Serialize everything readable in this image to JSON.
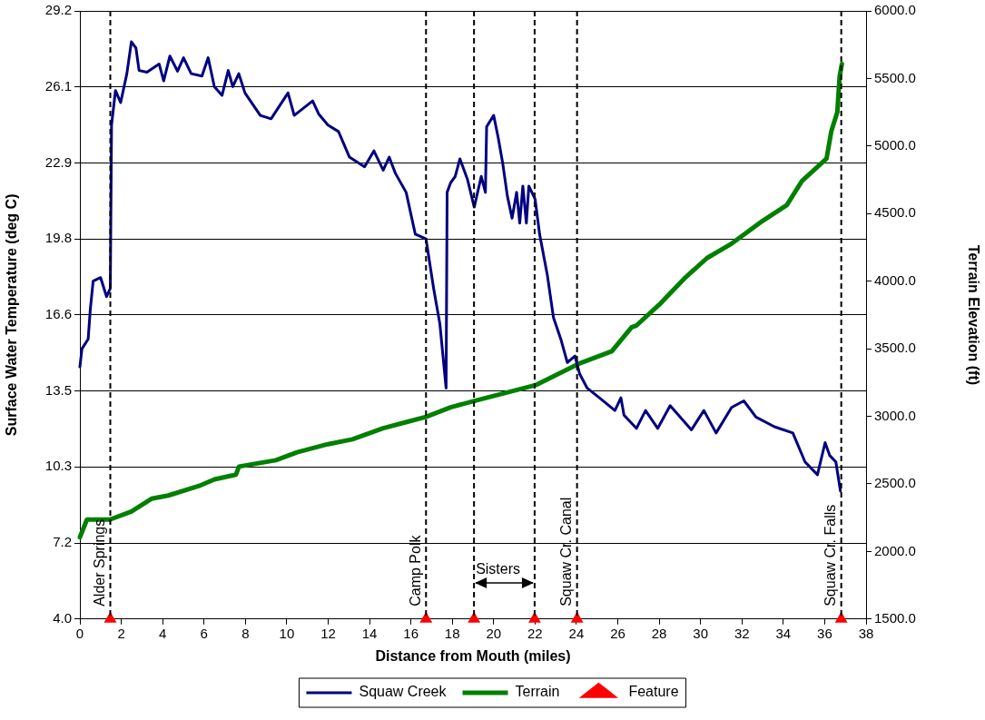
{
  "chart_data": {
    "type": "line",
    "xlabel": "Distance from Mouth (miles)",
    "ylabel": "Surface Water Temperature (deg C)",
    "y2label": "Terrain Elevation (ft)",
    "xlim": [
      0,
      38
    ],
    "xticks": [
      0,
      2,
      4,
      6,
      8,
      10,
      12,
      14,
      16,
      18,
      20,
      22,
      24,
      26,
      28,
      30,
      32,
      34,
      36,
      38
    ],
    "ylim": [
      4.0,
      29.2
    ],
    "yticks": [
      {
        "value": 4.0,
        "label": "4.0"
      },
      {
        "value": 7.15,
        "label": "7.2"
      },
      {
        "value": 10.3,
        "label": "10.3"
      },
      {
        "value": 13.45,
        "label": "13.5"
      },
      {
        "value": 16.6,
        "label": "16.6"
      },
      {
        "value": 19.75,
        "label": "19.8"
      },
      {
        "value": 22.9,
        "label": "22.9"
      },
      {
        "value": 26.05,
        "label": "26.1"
      },
      {
        "value": 29.2,
        "label": "29.2"
      }
    ],
    "y2lim": [
      1500,
      6000
    ],
    "y2ticks": [
      {
        "value": 1500,
        "label": "1500.0"
      },
      {
        "value": 2000,
        "label": "2000.0"
      },
      {
        "value": 2500,
        "label": "2500.0"
      },
      {
        "value": 3000,
        "label": "3000.0"
      },
      {
        "value": 3500,
        "label": "3500.0"
      },
      {
        "value": 4000,
        "label": "4000.0"
      },
      {
        "value": 4500,
        "label": "4500.0"
      },
      {
        "value": 5000,
        "label": "5000.0"
      },
      {
        "value": 5500,
        "label": "5500.0"
      },
      {
        "value": 6000,
        "label": "6000.0"
      }
    ],
    "grid": "y",
    "legend": "bottom",
    "series": [
      {
        "name": "Squaw Creek",
        "color": "#000080",
        "marker": "none",
        "x": [
          0,
          0.1,
          0.4,
          0.5,
          0.64,
          1.0,
          1.29,
          1.47,
          1.53,
          1.72,
          1.97,
          2.27,
          2.49,
          2.71,
          2.86,
          3.24,
          3.83,
          4.05,
          4.35,
          4.72,
          5.01,
          5.38,
          5.9,
          6.2,
          6.5,
          6.87,
          7.17,
          7.39,
          7.68,
          7.98,
          8.72,
          9.24,
          10.06,
          10.36,
          11.25,
          11.54,
          11.99,
          12.5,
          13.03,
          13.76,
          14.21,
          14.66,
          14.95,
          15.25,
          15.77,
          16.21,
          16.73,
          17.1,
          17.4,
          17.7,
          17.75,
          17.92,
          18.14,
          18.37,
          18.74,
          19.06,
          19.4,
          19.6,
          19.66,
          20.0,
          20.22,
          20.44,
          20.66,
          20.89,
          21.11,
          21.26,
          21.41,
          21.58,
          21.7,
          22.0,
          22.22,
          22.6,
          22.89,
          23.26,
          23.56,
          23.93,
          24.15,
          24.52,
          25.11,
          25.86,
          26.15,
          26.3,
          26.9,
          27.34,
          27.93,
          28.53,
          29.56,
          30.16,
          30.75,
          31.5,
          32.09,
          32.68,
          33.57,
          34.46,
          35.05,
          35.65,
          36.02,
          36.24,
          36.54,
          36.76
        ],
        "values": [
          14.45,
          15.2,
          15.6,
          16.8,
          18.0,
          18.15,
          17.36,
          17.7,
          24.47,
          25.9,
          25.4,
          26.6,
          27.92,
          27.66,
          26.73,
          26.66,
          27.0,
          26.3,
          27.33,
          26.7,
          27.26,
          26.6,
          26.5,
          27.26,
          26.06,
          25.7,
          26.73,
          26.06,
          26.6,
          25.8,
          24.87,
          24.73,
          25.8,
          24.87,
          25.47,
          24.93,
          24.47,
          24.2,
          23.14,
          22.74,
          23.4,
          22.6,
          23.14,
          22.47,
          21.68,
          19.95,
          19.75,
          17.69,
          16.23,
          13.57,
          21.68,
          22.08,
          22.34,
          23.07,
          22.2,
          21.07,
          22.34,
          21.68,
          24.4,
          24.87,
          23.94,
          22.87,
          21.54,
          20.61,
          21.68,
          20.41,
          21.94,
          20.41,
          21.94,
          21.41,
          19.95,
          18.22,
          16.49,
          15.56,
          14.63,
          14.9,
          14.17,
          13.57,
          13.17,
          12.64,
          13.17,
          12.45,
          11.9,
          12.64,
          11.9,
          12.84,
          11.84,
          12.64,
          11.71,
          12.77,
          13.04,
          12.37,
          11.97,
          11.71,
          10.51,
          9.98,
          11.31,
          10.78,
          10.51,
          9.31
        ]
      },
      {
        "name": "Terrain",
        "axis": "y2",
        "color": "#008000",
        "marker": "none",
        "x": [
          0,
          0.34,
          1.45,
          2.49,
          3.46,
          4.27,
          5.76,
          6.5,
          7.54,
          7.69,
          9.47,
          10.5,
          11.99,
          13.17,
          14.66,
          15.84,
          16.73,
          17.92,
          19.1,
          20.59,
          22.07,
          24.08,
          25.71,
          26.67,
          26.9,
          28.08,
          29.27,
          30.31,
          31.5,
          32.98,
          34.17,
          34.9,
          36.09,
          36.32,
          36.61,
          36.72,
          36.83
        ],
        "values": [
          2105,
          2236,
          2236,
          2296,
          2390,
          2414,
          2485,
          2533,
          2568,
          2628,
          2675,
          2734,
          2794,
          2830,
          2912,
          2960,
          2996,
          3067,
          3115,
          3174,
          3233,
          3387,
          3482,
          3660,
          3672,
          3838,
          4028,
          4171,
          4278,
          4444,
          4563,
          4741,
          4907,
          5109,
          5251,
          5512,
          5607
        ]
      },
      {
        "name": "Feature",
        "type": "scatter",
        "color": "#ff0000",
        "marker": "triangle",
        "x": [
          1.47,
          16.73,
          19.05,
          21.98,
          24.03,
          36.8
        ],
        "values": [
          4.0,
          4.0,
          4.0,
          4.0,
          4.0,
          4.0
        ]
      }
    ],
    "ref_lines": [
      {
        "axis": "x",
        "value": 1.47,
        "label": "Alder Springs",
        "line_style": "dashed"
      },
      {
        "axis": "x",
        "value": 16.73,
        "label": "Camp Polk",
        "line_style": "dashed"
      },
      {
        "axis": "x",
        "value": 19.05,
        "line_style": "dashed"
      },
      {
        "axis": "x",
        "value": 21.98,
        "line_style": "dashed"
      },
      {
        "axis": "x",
        "value": 24.03,
        "label": "Squaw Cr. Canal",
        "line_style": "dashed"
      },
      {
        "axis": "x",
        "value": 36.8,
        "label": "Squaw Cr. Falls",
        "line_style": "dashed"
      }
    ],
    "annotations": [
      {
        "text": "Sisters",
        "x": 19.05,
        "y": 5.5
      }
    ]
  }
}
